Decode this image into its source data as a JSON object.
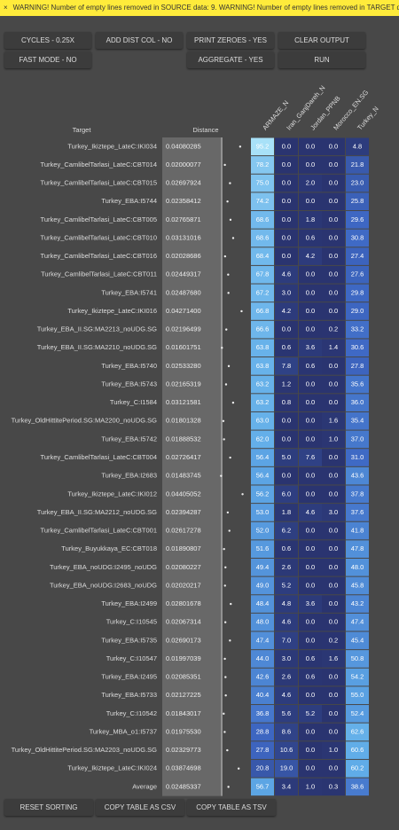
{
  "warning": "WARNING! Number of empty lines removed in SOURCE data: 9. WARNING! Number of empty lines removed in TARGET da",
  "buttons": [
    [
      "CYCLES - 0.25X",
      "ADD DIST COL - NO",
      "PRINT ZEROES - YES",
      "CLEAR OUTPUT"
    ],
    [
      "FAST MODE - NO",
      "AGGREGATE - YES",
      "RUN"
    ]
  ],
  "table": {
    "columns": [
      "Target",
      "Distance",
      "ARMAZE_N",
      "Iran_GanjDareh_N",
      "Jordan_PPNB",
      "Morocco_EN.SG",
      "Turkey_N"
    ],
    "rows": [
      [
        "Turkey_Ikiztepe_LateC:IKI034",
        "0.04080285",
        "95.2",
        "0.0",
        "0.0",
        "0.0",
        "4.8"
      ],
      [
        "Turkey_CamlibelTarlasi_LateC:CBT014",
        "0.02000077",
        "78.2",
        "0.0",
        "0.0",
        "0.0",
        "21.8"
      ],
      [
        "Turkey_CamlibelTarlasi_LateC:CBT015",
        "0.02697924",
        "75.0",
        "0.0",
        "2.0",
        "0.0",
        "23.0"
      ],
      [
        "Turkey_EBA:I5744",
        "0.02358412",
        "74.2",
        "0.0",
        "0.0",
        "0.0",
        "25.8"
      ],
      [
        "Turkey_CamlibelTarlasi_LateC:CBT005",
        "0.02765871",
        "68.6",
        "0.0",
        "1.8",
        "0.0",
        "29.6"
      ],
      [
        "Turkey_CamlibelTarlasi_LateC:CBT010",
        "0.03131016",
        "68.6",
        "0.0",
        "0.6",
        "0.0",
        "30.8"
      ],
      [
        "Turkey_CamlibelTarlasi_LateC:CBT016",
        "0.02028686",
        "68.4",
        "0.0",
        "4.2",
        "0.0",
        "27.4"
      ],
      [
        "Turkey_CamlibelTarlasi_LateC:CBT011",
        "0.02449317",
        "67.8",
        "4.6",
        "0.0",
        "0.0",
        "27.6"
      ],
      [
        "Turkey_EBA:I5741",
        "0.02487680",
        "67.2",
        "3.0",
        "0.0",
        "0.0",
        "29.8"
      ],
      [
        "Turkey_Ikiztepe_LateC:IKI016",
        "0.04271400",
        "66.8",
        "4.2",
        "0.0",
        "0.0",
        "29.0"
      ],
      [
        "Turkey_EBA_II.SG:MA2213_noUDG.SG",
        "0.02196499",
        "66.6",
        "0.0",
        "0.0",
        "0.2",
        "33.2"
      ],
      [
        "Turkey_EBA_II.SG:MA2210_noUDG.SG",
        "0.01601751",
        "63.8",
        "0.6",
        "3.6",
        "1.4",
        "30.6"
      ],
      [
        "Turkey_EBA:I5740",
        "0.02533280",
        "63.8",
        "7.8",
        "0.6",
        "0.0",
        "27.8"
      ],
      [
        "Turkey_EBA:I5743",
        "0.02165319",
        "63.2",
        "1.2",
        "0.0",
        "0.0",
        "35.6"
      ],
      [
        "Turkey_C:I1584",
        "0.03121581",
        "63.2",
        "0.8",
        "0.0",
        "0.0",
        "36.0"
      ],
      [
        "Turkey_OldHittitePeriod.SG:MA2200_noUDG.SG",
        "0.01801328",
        "63.0",
        "0.0",
        "0.0",
        "1.6",
        "35.4"
      ],
      [
        "Turkey_EBA:I5742",
        "0.01888532",
        "62.0",
        "0.0",
        "0.0",
        "1.0",
        "37.0"
      ],
      [
        "Turkey_CamlibelTarlasi_LateC:CBT004",
        "0.02726417",
        "56.4",
        "5.0",
        "7.6",
        "0.0",
        "31.0"
      ],
      [
        "Turkey_EBA:I2683",
        "0.01483745",
        "56.4",
        "0.0",
        "0.0",
        "0.0",
        "43.6"
      ],
      [
        "Turkey_Ikiztepe_LateC:IKI012",
        "0.04405052",
        "56.2",
        "6.0",
        "0.0",
        "0.0",
        "37.8"
      ],
      [
        "Turkey_EBA_II.SG:MA2212_noUDG.SG",
        "0.02394287",
        "53.0",
        "1.8",
        "4.6",
        "3.0",
        "37.6"
      ],
      [
        "Turkey_CamlibelTarlasi_LateC:CBT001",
        "0.02617278",
        "52.0",
        "6.2",
        "0.0",
        "0.0",
        "41.8"
      ],
      [
        "Turkey_Buyukkaya_EC:CBT018",
        "0.01890807",
        "51.6",
        "0.6",
        "0.0",
        "0.0",
        "47.8"
      ],
      [
        "Turkey_EBA_noUDG:I2495_noUDG",
        "0.02080227",
        "49.4",
        "2.6",
        "0.0",
        "0.0",
        "48.0"
      ],
      [
        "Turkey_EBA_noUDG:I2683_noUDG",
        "0.02020217",
        "49.0",
        "5.2",
        "0.0",
        "0.0",
        "45.8"
      ],
      [
        "Turkey_EBA:I2499",
        "0.02801678",
        "48.4",
        "4.8",
        "3.6",
        "0.0",
        "43.2"
      ],
      [
        "Turkey_C:I10545",
        "0.02067314",
        "48.0",
        "4.6",
        "0.0",
        "0.0",
        "47.4"
      ],
      [
        "Turkey_EBA:I5735",
        "0.02690173",
        "47.4",
        "7.0",
        "0.0",
        "0.2",
        "45.4"
      ],
      [
        "Turkey_C:I10547",
        "0.01997039",
        "44.0",
        "3.0",
        "0.6",
        "1.6",
        "50.8"
      ],
      [
        "Turkey_EBA:I2495",
        "0.02085351",
        "42.6",
        "2.6",
        "0.6",
        "0.0",
        "54.2"
      ],
      [
        "Turkey_EBA:I5733",
        "0.02127225",
        "40.4",
        "4.6",
        "0.0",
        "0.0",
        "55.0"
      ],
      [
        "Turkey_C:I10542",
        "0.01843017",
        "36.8",
        "5.6",
        "5.2",
        "0.0",
        "52.4"
      ],
      [
        "Turkey_MBA_o1:I5737",
        "0.01975530",
        "28.8",
        "8.6",
        "0.0",
        "0.0",
        "62.6"
      ],
      [
        "Turkey_OldHittitePeriod.SG:MA2203_noUDG.SG",
        "0.02329773",
        "27.8",
        "10.6",
        "0.0",
        "1.0",
        "60.6"
      ],
      [
        "Turkey_Ikiztepe_LateC:IKI024",
        "0.03874698",
        "20.8",
        "19.0",
        "0.0",
        "0.0",
        "60.2"
      ],
      [
        "Average",
        "0.02485337",
        "56.7",
        "3.4",
        "1.0",
        "0.3",
        "38.6"
      ]
    ]
  },
  "footer_buttons": [
    "RESET SORTING",
    "COPY TABLE AS CSV",
    "COPY TABLE AS TSV"
  ]
}
